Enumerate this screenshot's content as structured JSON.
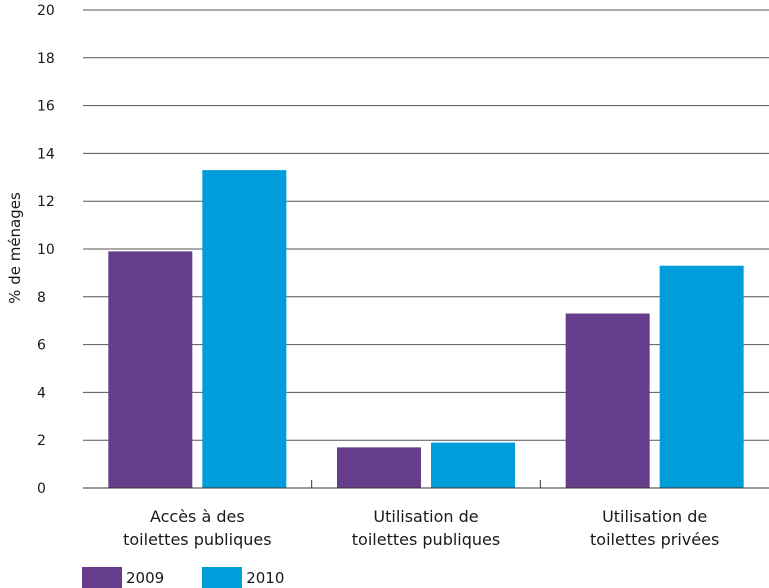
{
  "chart_data": {
    "type": "bar",
    "title": "",
    "xlabel": "",
    "ylabel": "% de ménages",
    "ylim": [
      0,
      20
    ],
    "yticks": [
      0,
      2,
      4,
      6,
      8,
      10,
      12,
      14,
      16,
      18,
      20
    ],
    "grid": true,
    "legend_position": "bottom-left",
    "categories": [
      [
        "Accès à des",
        "toilettes publiques"
      ],
      [
        "Utilisation de",
        "toilettes publiques"
      ],
      [
        "Utilisation de",
        "toilettes privées"
      ]
    ],
    "series": [
      {
        "name": "2009",
        "color": "#663d8a",
        "values": [
          9.9,
          1.7,
          7.3
        ]
      },
      {
        "name": "2010",
        "color": "#009ddb",
        "values": [
          13.3,
          1.9,
          9.3
        ]
      }
    ]
  },
  "legend": {
    "items": [
      {
        "label": "2009",
        "color": "#663d8a"
      },
      {
        "label": "2010",
        "color": "#009ddb"
      }
    ]
  }
}
